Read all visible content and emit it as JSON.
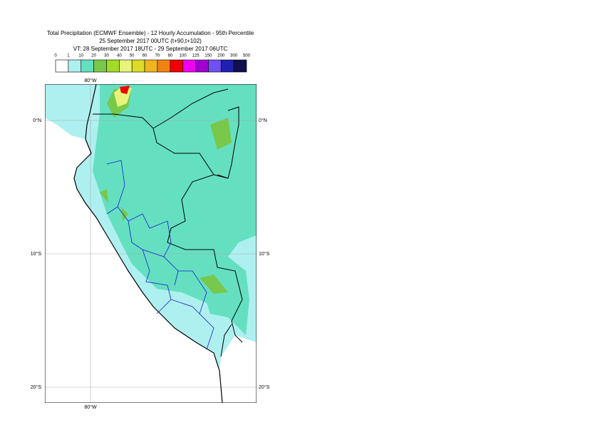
{
  "title": [
    "Total Precipitation (ECMWF Ensemble) - 12 Hourly Accumulation - 95th Percentile",
    "25 September 2017 00UTC (t+90,t+102)",
    "VT: 28 September 2017 18UTC - 29 September 2017 06UTC"
  ],
  "legend": {
    "labels": [
      0,
      1,
      10,
      20,
      30,
      40,
      50,
      60,
      70,
      80,
      100,
      125,
      150,
      200,
      300,
      500
    ],
    "colors": [
      "#ffffff",
      "#aef0f0",
      "#64e0c0",
      "#78c84c",
      "#a0dc28",
      "#e6f47a",
      "#dcdc28",
      "#f0b41e",
      "#f08214",
      "#f00000",
      "#f000f0",
      "#a000d0",
      "#7050f0",
      "#2020b0",
      "#101050"
    ]
  },
  "map": {
    "lon_labels": [
      "80°W"
    ],
    "lat_labels": [
      "0°N",
      "10°S",
      "20°S"
    ]
  }
}
